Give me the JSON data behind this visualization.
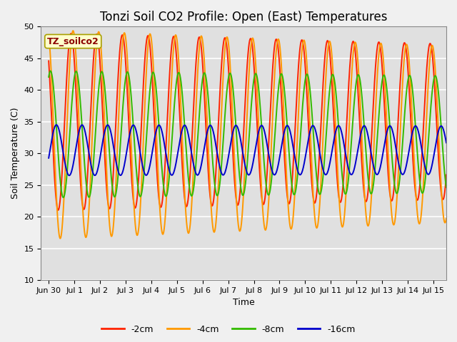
{
  "title": "Tonzi Soil CO2 Profile: Open (East) Temperatures",
  "xlabel": "Time",
  "ylabel": "Soil Temperature (C)",
  "ylim": [
    10,
    50
  ],
  "xlim_days": [
    -0.3,
    15.5
  ],
  "xtick_labels": [
    "Jun 30",
    "Jul 1",
    "Jul 2",
    "Jul 3",
    "Jul 4",
    "Jul 5",
    "Jul 6",
    "Jul 7",
    "Jul 8",
    "Jul 9",
    "Jul 10",
    "Jul 11",
    "Jul 12",
    "Jul 13",
    "Jul 14",
    "Jul 15"
  ],
  "xtick_positions": [
    0,
    1,
    2,
    3,
    4,
    5,
    6,
    7,
    8,
    9,
    10,
    11,
    12,
    13,
    14,
    15
  ],
  "series": {
    "2cm": {
      "color": "#ff2200",
      "label": "-2cm",
      "mean": 35.0,
      "amp": 14.0,
      "phase": 0.62,
      "amp_decay": 0.008
    },
    "4cm": {
      "color": "#ff9900",
      "label": "-4cm",
      "mean": 33.0,
      "amp": 16.5,
      "phase": 0.7,
      "amp_decay": 0.01
    },
    "8cm": {
      "color": "#33bb00",
      "label": "-8cm",
      "mean": 33.0,
      "amp": 10.0,
      "phase": 0.82,
      "amp_decay": 0.005
    },
    "16cm": {
      "color": "#0000cc",
      "label": "-16cm",
      "mean": 30.5,
      "amp": 4.0,
      "phase": 0.05,
      "amp_decay": 0.003
    }
  },
  "legend_label": "TZ_soilco2",
  "background_color": "#e0e0e0",
  "grid_color": "#ffffff",
  "fig_background": "#f0f0f0",
  "title_fontsize": 12,
  "axis_fontsize": 9,
  "tick_fontsize": 8,
  "linewidth": 1.4
}
